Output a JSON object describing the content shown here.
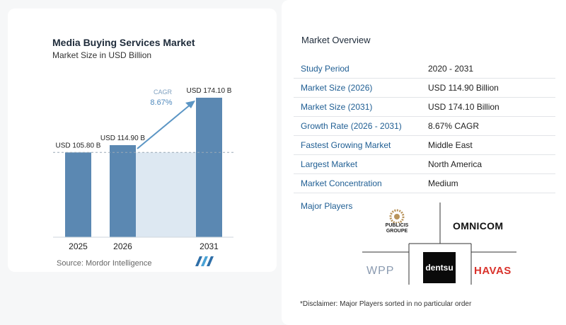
{
  "chart_data": {
    "type": "bar",
    "title": "Media Buying Services Market",
    "subtitle": "Market Size in USD Billion",
    "categories": [
      "2025",
      "2026",
      "2031"
    ],
    "values": [
      105.8,
      114.9,
      174.1
    ],
    "value_labels": [
      "USD 105.80 B",
      "USD 114.90 B",
      "USD 174.10 B"
    ],
    "cagr_label": "CAGR",
    "cagr_value": "8.67%",
    "source": "Source: Mordor Intelligence",
    "colors": {
      "bar": "#5b88b2",
      "bar_top": "#6f9bc2",
      "shade": "#dde8f2",
      "arrow": "#5b95c4",
      "dash": "#9aa8b6"
    }
  },
  "overview": {
    "title": "Market Overview",
    "rows": [
      {
        "key": "Study Period",
        "value": "2020 - 2031"
      },
      {
        "key": "Market Size (2026)",
        "value": "USD 114.90 Billion"
      },
      {
        "key": "Market Size (2031)",
        "value": "USD 174.10 Billion"
      },
      {
        "key": "Growth Rate (2026 - 2031)",
        "value": "8.67% CAGR"
      },
      {
        "key": "Fastest Growing Market",
        "value": "Middle East"
      },
      {
        "key": "Largest Market",
        "value": "North America"
      },
      {
        "key": "Market Concentration",
        "value": "Medium"
      }
    ]
  },
  "players": {
    "title": "Major Players",
    "publicis_line1": "PUBLICIS",
    "publicis_line2": "GROUPE",
    "omnicom": "OMNICOM",
    "wpp": "WPP",
    "dentsu": "dentsu",
    "havas": "HAVAS",
    "disclaimer": "*Disclaimer: Major Players sorted in no particular order"
  }
}
